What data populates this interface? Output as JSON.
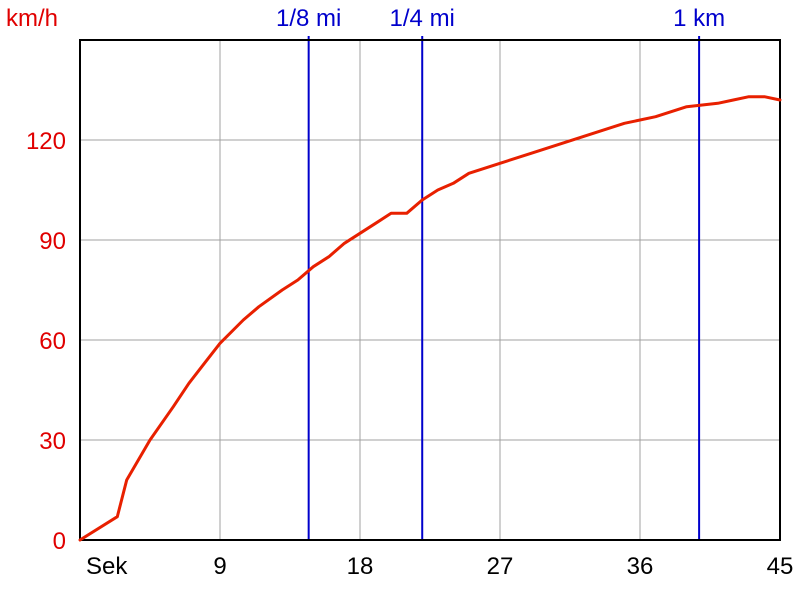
{
  "chart_data": {
    "type": "line",
    "title": "",
    "ylabel": "km/h",
    "xlabel": "Sek",
    "xlim": [
      0,
      45
    ],
    "ylim": [
      0,
      150
    ],
    "x_ticks": [
      9,
      18,
      27,
      36,
      45
    ],
    "y_ticks": [
      0,
      30,
      60,
      90,
      120
    ],
    "grid": true,
    "series": [
      {
        "color": "#e82000",
        "points": [
          [
            0,
            0
          ],
          [
            2.4,
            7
          ],
          [
            3.0,
            18
          ],
          [
            4.5,
            30
          ],
          [
            6.0,
            40
          ],
          [
            7.0,
            47
          ],
          [
            8.0,
            53
          ],
          [
            9.0,
            59
          ],
          [
            10.5,
            66
          ],
          [
            11.5,
            70
          ],
          [
            13.0,
            75
          ],
          [
            14.0,
            78
          ],
          [
            15.0,
            82
          ],
          [
            16.0,
            85
          ],
          [
            17.0,
            89
          ],
          [
            18.0,
            92
          ],
          [
            19.0,
            95
          ],
          [
            20.0,
            98
          ],
          [
            21.0,
            98
          ],
          [
            22.0,
            102
          ],
          [
            23.0,
            105
          ],
          [
            24.0,
            107
          ],
          [
            25.0,
            110
          ],
          [
            27.0,
            113
          ],
          [
            29.0,
            116
          ],
          [
            31.0,
            119
          ],
          [
            33.0,
            122
          ],
          [
            35.0,
            125
          ],
          [
            37.0,
            127
          ],
          [
            39.0,
            130
          ],
          [
            41.0,
            131
          ],
          [
            42.0,
            132
          ],
          [
            43.0,
            133
          ],
          [
            44.0,
            133
          ],
          [
            45.0,
            132
          ]
        ]
      }
    ],
    "markers": [
      {
        "label": "1/8 mi",
        "x": 14.7
      },
      {
        "label": "1/4 mi",
        "x": 22.0
      },
      {
        "label": "1 km",
        "x": 39.8
      }
    ],
    "colors": {
      "grid": "#a0a0a0",
      "axis": "#000000",
      "marker": "#0000cc",
      "y_ticks": "#e00000",
      "x_ticks": "#000000"
    }
  }
}
